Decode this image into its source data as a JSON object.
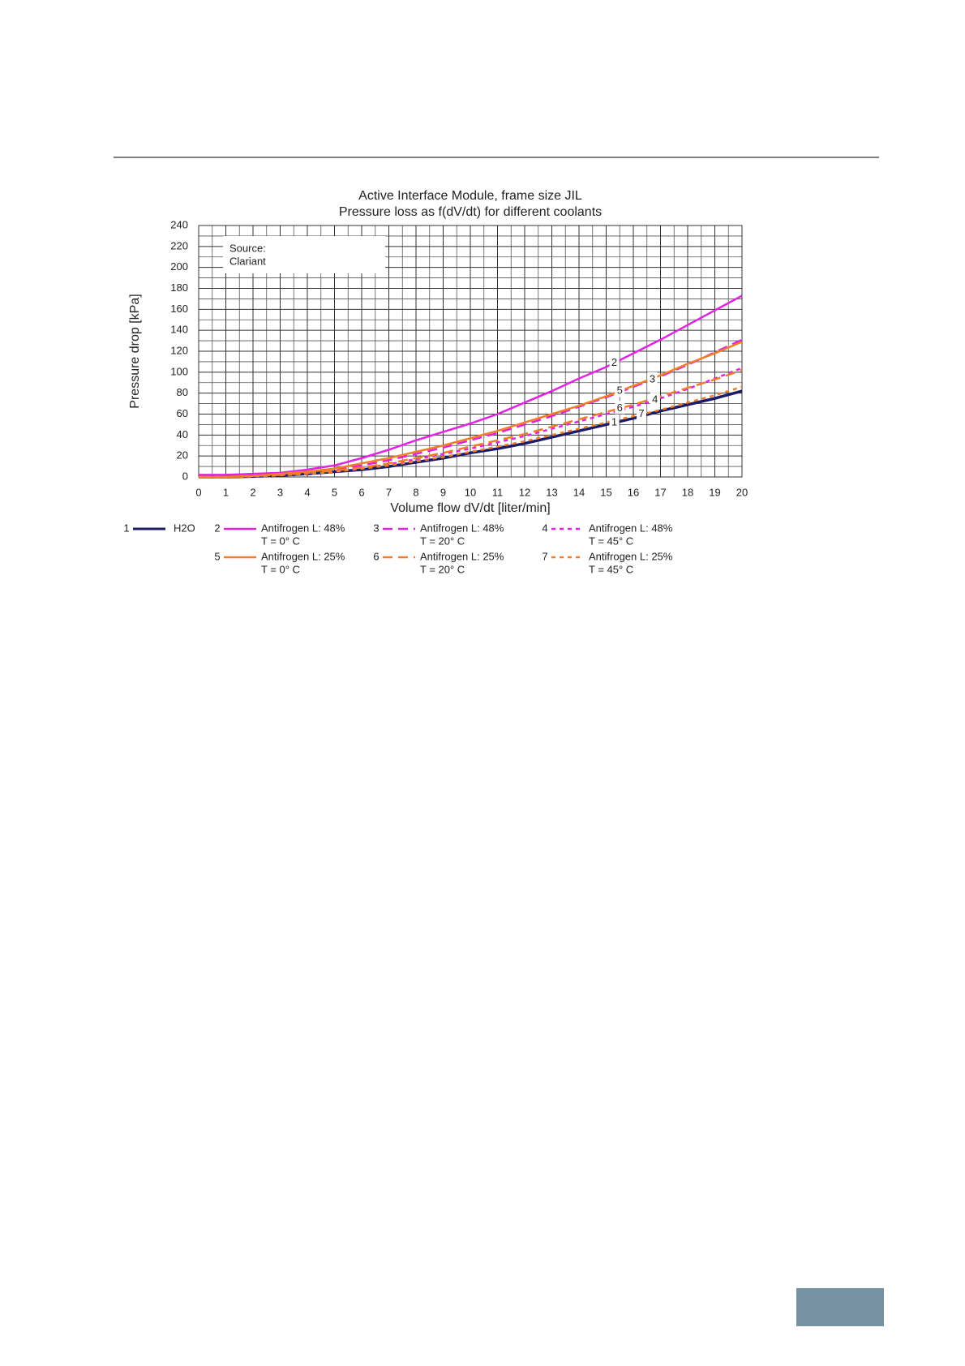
{
  "chart_data": {
    "type": "line",
    "title": "Active Interface Module, frame size JIL",
    "subtitle": "Pressure loss as f(dV/dt) for different coolants",
    "x_label": "Volume flow dV/dt [liter/min]",
    "y_label": "Pressure drop [kPa]",
    "annotation": [
      "Source:",
      "Clariant"
    ],
    "x": [
      0,
      1,
      2,
      3,
      4,
      5,
      6,
      7,
      8,
      9,
      10,
      11,
      12,
      13,
      14,
      15,
      16,
      17,
      18,
      19,
      20
    ],
    "xlim": [
      0,
      20
    ],
    "ylim": [
      0,
      240
    ],
    "xticks": [
      0,
      1,
      2,
      3,
      4,
      5,
      6,
      7,
      8,
      9,
      10,
      11,
      12,
      13,
      14,
      15,
      16,
      17,
      18,
      19,
      20
    ],
    "yticks": [
      0,
      20,
      40,
      60,
      80,
      100,
      120,
      140,
      160,
      180,
      200,
      220,
      240
    ],
    "x_minor_grid": [
      0.5,
      1.5,
      2.5,
      3.5,
      4.5,
      5.5,
      6.5,
      7.5,
      8.5,
      9.5,
      10.5,
      11.5,
      12.5,
      13.5,
      14.5,
      15.5,
      16.5,
      17.5,
      18.5,
      19.5
    ],
    "y_minor_grid": [
      10,
      30,
      50,
      70,
      90,
      110,
      130,
      150,
      170,
      190,
      210,
      230
    ],
    "grid": true,
    "series": [
      {
        "id": "1",
        "name": "H2O",
        "color": "#1c1c6b",
        "dash": "solid",
        "values": [
          0,
          0,
          0.5,
          1.5,
          3,
          5,
          7,
          10,
          14,
          18,
          23,
          27,
          32,
          38,
          44,
          50,
          56,
          63,
          69,
          75,
          82
        ]
      },
      {
        "id": "2",
        "name": "Antifrogen L: 48%",
        "temperature": "T = 0° C",
        "color": "#e322e3",
        "dash": "solid",
        "values": [
          2,
          2,
          3,
          4,
          7,
          11,
          18,
          26,
          35,
          43,
          51,
          60,
          71,
          82,
          94,
          105,
          118,
          131,
          145,
          159,
          173
        ]
      },
      {
        "id": "3",
        "name": "Antifrogen L: 48%",
        "temperature": "T = 20° C",
        "color": "#e322e3",
        "dash": "dashed",
        "values": [
          0,
          0,
          1,
          2,
          4,
          7,
          11,
          16,
          22,
          28,
          35,
          42,
          50,
          58,
          67,
          76,
          86,
          96,
          107,
          119,
          131
        ]
      },
      {
        "id": "4",
        "name": "Antifrogen L: 48%",
        "temperature": "T = 45° C",
        "color": "#e322e3",
        "dash": "dotted",
        "values": [
          0,
          0,
          1,
          2,
          3,
          5,
          8,
          12,
          17,
          22,
          27,
          33,
          39,
          46,
          53,
          60,
          67,
          75,
          84,
          94,
          104
        ]
      },
      {
        "id": "5",
        "name": "Antifrogen L: 25%",
        "temperature": "T = 0° C",
        "color": "#f07d28",
        "dash": "solid",
        "values": [
          0,
          0,
          1,
          3,
          5,
          8,
          13,
          18,
          24,
          30,
          37,
          44,
          52,
          60,
          68,
          77,
          87,
          97,
          108,
          118,
          129
        ]
      },
      {
        "id": "6",
        "name": "Antifrogen L: 25%",
        "temperature": "T = 20° C",
        "color": "#f07d28",
        "dash": "dashed",
        "values": [
          0,
          0,
          1,
          2,
          4,
          6,
          9,
          13,
          18,
          23,
          29,
          35,
          41,
          48,
          55,
          62,
          69,
          77,
          85,
          93,
          102
        ]
      },
      {
        "id": "7",
        "name": "Antifrogen L: 25%",
        "temperature": "T = 45° C",
        "color": "#f07d28",
        "dash": "dotted",
        "values": [
          0,
          0,
          0.5,
          1.5,
          3,
          5,
          8,
          11,
          15,
          19,
          24,
          29,
          34,
          40,
          46,
          52,
          58,
          64,
          71,
          78,
          86
        ]
      }
    ]
  }
}
